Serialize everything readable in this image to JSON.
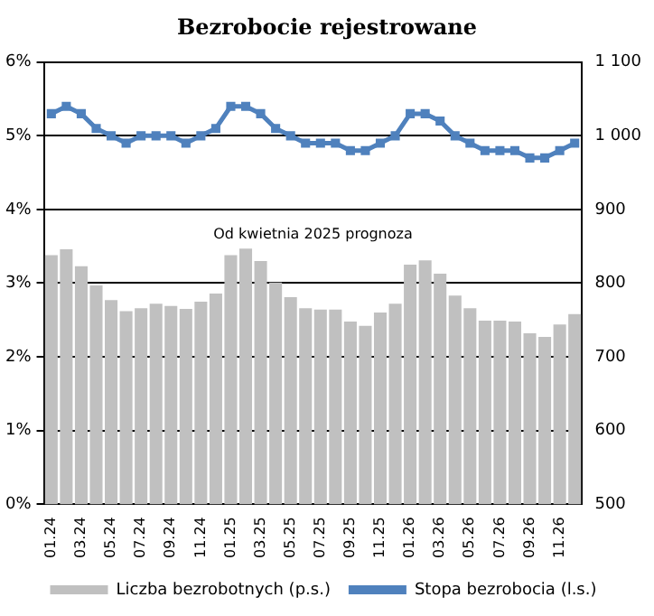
{
  "chart_data": {
    "type": "bar",
    "title": "Bezrobocie rejestrowane",
    "categories": [
      "01.24",
      null,
      "03.24",
      null,
      "05.24",
      null,
      "07.24",
      null,
      "09.24",
      null,
      "11.24",
      null,
      "01.25",
      null,
      "03.25",
      null,
      "05.25",
      null,
      "07.25",
      null,
      "09.25",
      null,
      "11.25",
      null,
      "01.26",
      null,
      "03.26",
      null,
      "05.26",
      null,
      "07.26",
      null,
      "09.26",
      null,
      "11.26",
      null
    ],
    "series": [
      {
        "name": "Liczba bezrobotnych (p.s.)",
        "axis": "y2",
        "color": "#c0c0c0",
        "values": [
          838,
          846,
          823,
          797,
          777,
          762,
          766,
          772,
          769,
          765,
          775,
          786,
          838,
          847,
          830,
          801,
          781,
          766,
          764,
          764,
          748,
          742,
          760,
          772,
          825,
          831,
          813,
          783,
          766,
          749,
          749,
          748,
          732,
          727,
          744,
          758
        ]
      },
      {
        "name": "Stopa bezrobocia (l.s.)",
        "type": "line",
        "color": "#4f81bd",
        "marker": "square",
        "values": [
          5.3,
          5.4,
          5.3,
          5.1,
          5.0,
          4.9,
          5.0,
          5.0,
          5.0,
          4.9,
          5.0,
          5.1,
          5.4,
          5.4,
          5.3,
          5.1,
          5.0,
          4.9,
          4.9,
          4.9,
          4.8,
          4.8,
          4.9,
          5.0,
          5.3,
          5.3,
          5.2,
          5.0,
          4.9,
          4.8,
          4.8,
          4.8,
          4.7,
          4.7,
          4.8,
          4.9
        ]
      }
    ],
    "ylim": [
      0,
      6
    ],
    "yticks": [
      {
        "value": 0,
        "label": "0%"
      },
      {
        "value": 1,
        "label": "1%"
      },
      {
        "value": 2,
        "label": "2%"
      },
      {
        "value": 3,
        "label": "3%"
      },
      {
        "value": 4,
        "label": "4%"
      },
      {
        "value": 5,
        "label": "5%"
      },
      {
        "value": 6,
        "label": "6%"
      }
    ],
    "y2lim": [
      500,
      1100
    ],
    "y2ticks": [
      500,
      600,
      700,
      800,
      900,
      {
        "value": 1000,
        "label": "1 000"
      },
      {
        "value": 1100,
        "label": "1 100"
      }
    ],
    "grid": "y",
    "legend": "bottom",
    "annotations": [
      "Od kwietnia 2025 prognoza"
    ]
  }
}
